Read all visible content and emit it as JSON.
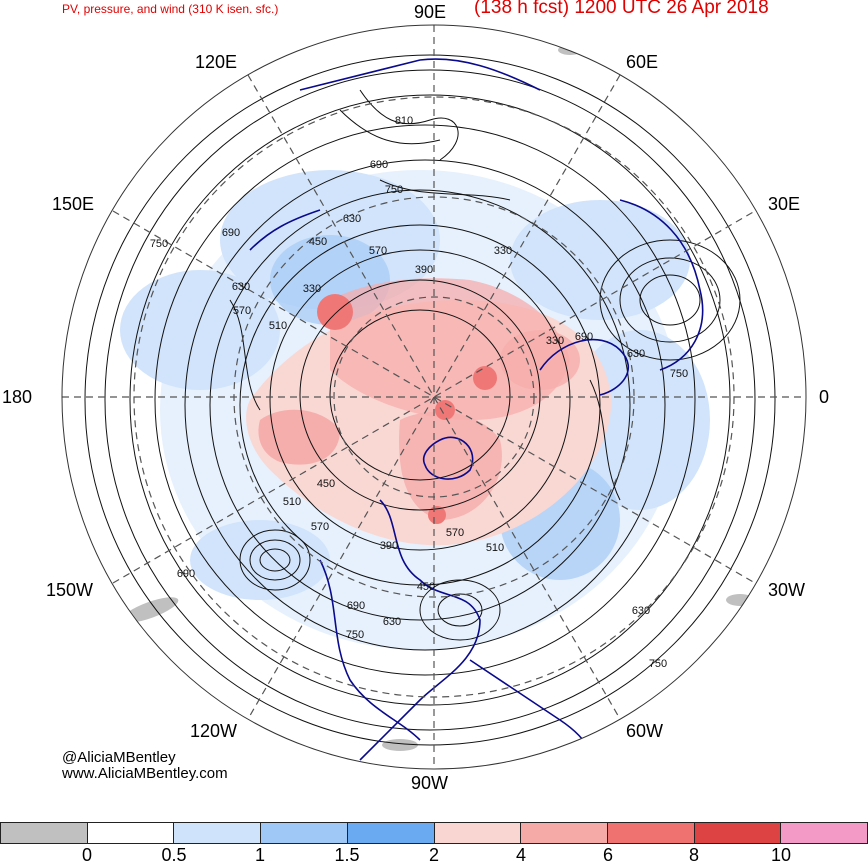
{
  "title": {
    "left": "PV, pressure, and wind (310 K isen. sfc.)",
    "right": "(138 h fcst) 1200 UTC 26 Apr 2018",
    "color": "#e00000"
  },
  "longitude_labels": {
    "lon_90e": "90E",
    "lon_120e": "120E",
    "lon_60e": "60E",
    "lon_150e": "150E",
    "lon_30e": "30E",
    "lon_180": "180",
    "lon_0": "0",
    "lon_150w": "150W",
    "lon_30w": "30W",
    "lon_120w": "120W",
    "lon_60w": "60W",
    "lon_90w": "90W"
  },
  "contour_labels": [
    "810",
    "690",
    "750",
    "630",
    "570",
    "450",
    "330",
    "390",
    "330",
    "510",
    "570",
    "630",
    "690",
    "750",
    "330",
    "690",
    "630",
    "750",
    "450",
    "510",
    "570",
    "390",
    "450",
    "510",
    "570",
    "690",
    "750",
    "630",
    "690",
    "630",
    "750"
  ],
  "credit": {
    "line1": "@AliciaMBentley",
    "line2": "www.AliciaMBentley.com"
  },
  "colorbar": {
    "colors": [
      "#c0c0c0",
      "#ffffff",
      "#cfe3fb",
      "#9fc8f6",
      "#6aaaf0",
      "#f9d6d2",
      "#f6aaa8",
      "#ef7170",
      "#de4343",
      "#f49ac6"
    ],
    "ticks": [
      "0",
      "0.5",
      "1",
      "1.5",
      "2",
      "4",
      "6",
      "8",
      "10"
    ]
  },
  "map_colors": {
    "coastline": "#0a0a8c",
    "contour": "#111111",
    "gridline": "#555555",
    "pv_light_blue": "#cfe3fb",
    "pv_mid_blue": "#9fc8f6",
    "pv_blue": "#6aaaf0",
    "pv_light_red": "#f9d6d2",
    "pv_red": "#f6aaa8",
    "pv_dark_red": "#ef7170"
  }
}
